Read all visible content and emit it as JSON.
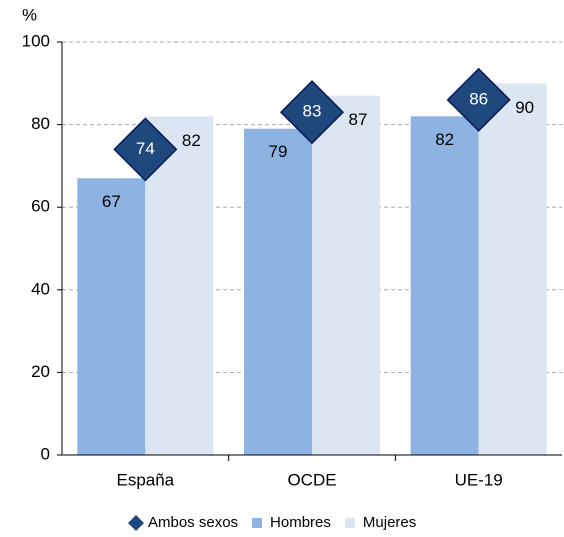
{
  "chart_data": {
    "type": "bar",
    "y_label": "%",
    "categories": [
      "España",
      "OCDE",
      "UE-19"
    ],
    "series": [
      {
        "name": "Ambos sexos",
        "color": "#1f497d",
        "marker": "diamond",
        "values": [
          74,
          83,
          86
        ]
      },
      {
        "name": "Hombres",
        "color": "#8db3e2",
        "values": [
          67,
          79,
          82
        ]
      },
      {
        "name": "Mujeres",
        "color": "#dce6f2",
        "values": [
          82,
          87,
          90
        ]
      }
    ],
    "ylim": [
      0,
      100
    ],
    "yticks": [
      0,
      20,
      40,
      60,
      80,
      100
    ],
    "grid": true
  }
}
